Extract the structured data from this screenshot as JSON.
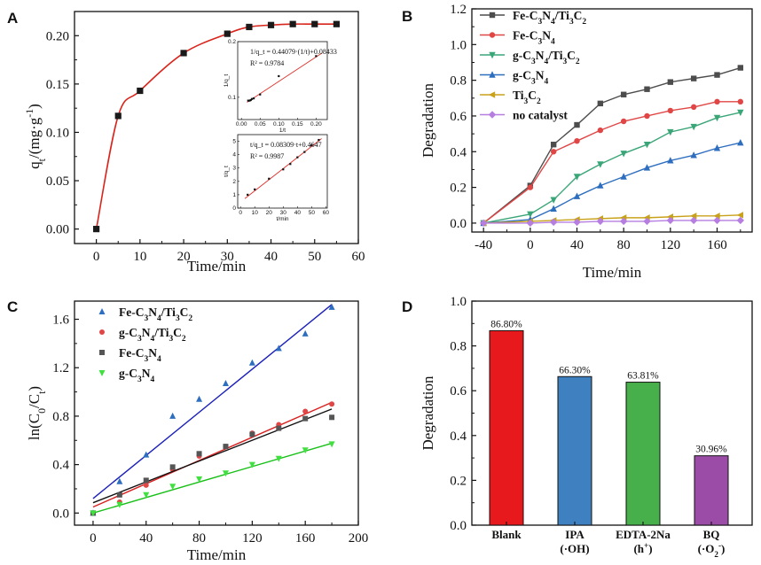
{
  "chart_data": [
    {
      "panel": "A",
      "type": "line",
      "xlabel": "Time/min",
      "ylabel": "q_t/(mg·g^-1)",
      "xlim": [
        -5,
        60
      ],
      "ylim": [
        -0.015,
        0.225
      ],
      "xticks": [
        "0",
        "10",
        "20",
        "30",
        "40",
        "50",
        "60"
      ],
      "yticks": [
        "0.00",
        "0.05",
        "0.10",
        "0.15",
        "0.20"
      ],
      "series": [
        {
          "name": "q_t",
          "color": "#d9241b",
          "marker": "square",
          "x": [
            0,
            5,
            10,
            20,
            30,
            35,
            40,
            45,
            50,
            55
          ],
          "y": [
            0.0,
            0.117,
            0.143,
            0.182,
            0.202,
            0.209,
            0.211,
            0.212,
            0.212,
            0.212
          ]
        }
      ],
      "insets": [
        {
          "equation": "1/q_t = 0.44079·(1/t)+0.08433",
          "r2": "R² = 0.9784",
          "xlabel": "1/t",
          "ylabel": "1/q_t",
          "xticks": [
            "0.00",
            "0.05",
            "0.10",
            "0.15",
            "0.20"
          ],
          "yticks": [
            "0.1",
            "0.2"
          ],
          "xlim": [
            -0.01,
            0.23
          ],
          "ylim": [
            0.06,
            0.2
          ],
          "fit": {
            "slope": 0.44079,
            "intercept": 0.08433
          },
          "x": [
            0.018,
            0.022,
            0.025,
            0.028,
            0.033,
            0.05,
            0.1,
            0.2
          ],
          "y": [
            0.094,
            0.094,
            0.095,
            0.097,
            0.098,
            0.105,
            0.138,
            0.174
          ]
        },
        {
          "equation": "t/q_t = 0.08309·t+0.4647",
          "r2": "R² = 0.9987",
          "xlabel": "t/min",
          "ylabel": "t/q_t",
          "xticks": [
            "0",
            "10",
            "20",
            "30",
            "40",
            "50",
            "60"
          ],
          "yticks": [
            "0",
            "1",
            "2",
            "3",
            "4",
            "5"
          ],
          "xlim": [
            -2,
            61
          ],
          "ylim": [
            0,
            5.5
          ],
          "fit": {
            "slope": 0.08309,
            "intercept": 0.4647
          },
          "x": [
            5,
            10,
            20,
            30,
            35,
            40,
            45,
            50,
            55
          ],
          "y": [
            1.0,
            1.4,
            2.2,
            2.9,
            3.3,
            3.8,
            4.2,
            4.7,
            5.1
          ]
        }
      ]
    },
    {
      "panel": "B",
      "type": "line",
      "xlabel": "Time/min",
      "ylabel": "Degradation",
      "xlim": [
        -50,
        190
      ],
      "ylim": [
        -0.05,
        1.2
      ],
      "xticks": [
        "-40",
        "0",
        "40",
        "80",
        "120",
        "160"
      ],
      "yticks": [
        "0.0",
        "0.2",
        "0.4",
        "0.6",
        "0.8",
        "1.0",
        "1.2"
      ],
      "x": [
        -40,
        0,
        20,
        40,
        60,
        80,
        100,
        120,
        140,
        160,
        180
      ],
      "series": [
        {
          "name": "Fe-C3N4/Ti3C2",
          "color": "#4d4d4d",
          "marker": "square",
          "values": [
            0,
            0.21,
            0.44,
            0.55,
            0.67,
            0.72,
            0.75,
            0.79,
            0.81,
            0.83,
            0.87
          ]
        },
        {
          "name": "Fe-C3N4",
          "color": "#e04646",
          "marker": "circle",
          "values": [
            0,
            0.2,
            0.4,
            0.46,
            0.52,
            0.57,
            0.6,
            0.63,
            0.65,
            0.68,
            0.68
          ]
        },
        {
          "name": "g-C3N4/Ti3C2",
          "color": "#3aa678",
          "marker": "triangle-down",
          "values": [
            0,
            0.05,
            0.13,
            0.26,
            0.33,
            0.39,
            0.44,
            0.51,
            0.54,
            0.59,
            0.62
          ]
        },
        {
          "name": "g-C3N4",
          "color": "#2e6ebf",
          "marker": "triangle-up",
          "values": [
            0,
            0.02,
            0.08,
            0.15,
            0.21,
            0.26,
            0.31,
            0.35,
            0.38,
            0.42,
            0.45
          ]
        },
        {
          "name": "Ti3C2",
          "color": "#c9a21c",
          "marker": "triangle-left",
          "values": [
            0,
            0.01,
            0.015,
            0.02,
            0.025,
            0.03,
            0.03,
            0.035,
            0.04,
            0.04,
            0.045
          ]
        },
        {
          "name": "no catalyst",
          "color": "#b57ee0",
          "marker": "diamond",
          "values": [
            0,
            0.0,
            0.005,
            0.005,
            0.01,
            0.01,
            0.01,
            0.015,
            0.015,
            0.015,
            0.015
          ]
        }
      ]
    },
    {
      "panel": "C",
      "type": "scatter",
      "xlabel": "Time/min",
      "ylabel": "ln(C0/Ct)",
      "xlim": [
        -14,
        200
      ],
      "ylim": [
        -0.1,
        1.75
      ],
      "xticks": [
        "0",
        "40",
        "80",
        "120",
        "160",
        "200"
      ],
      "yticks": [
        "0.0",
        "0.4",
        "0.8",
        "1.2",
        "1.6"
      ],
      "x": [
        0,
        20,
        40,
        60,
        80,
        100,
        120,
        140,
        160,
        180
      ],
      "series": [
        {
          "name": "Fe-C3N4/Ti3C2",
          "color": "#2e6ebf",
          "fitcolor": "#1a1fb8",
          "marker": "triangle-up",
          "values": [
            0,
            0.26,
            0.48,
            0.8,
            0.94,
            1.07,
            1.24,
            1.36,
            1.48,
            1.7
          ],
          "fit": [
            0.12,
            0.0089
          ]
        },
        {
          "name": "g-C3N4/Ti3C2",
          "color": "#e04646",
          "fitcolor": "#d92020",
          "marker": "circle",
          "values": [
            0,
            0.09,
            0.23,
            0.36,
            0.47,
            0.55,
            0.66,
            0.73,
            0.84,
            0.9
          ],
          "fit": [
            0.05,
            0.0048
          ]
        },
        {
          "name": "Fe-C3N4",
          "color": "#555555",
          "fitcolor": "#111111",
          "marker": "square",
          "values": [
            0,
            0.15,
            0.27,
            0.38,
            0.49,
            0.55,
            0.65,
            0.7,
            0.78,
            0.79
          ],
          "fit": [
            0.085,
            0.0043
          ]
        },
        {
          "name": "g-C3N4",
          "color": "#3fe03f",
          "fitcolor": "#18c018",
          "marker": "triangle-down",
          "values": [
            0,
            0.07,
            0.15,
            0.22,
            0.28,
            0.33,
            0.4,
            0.45,
            0.52,
            0.57
          ],
          "fit": [
            0.0,
            0.0032
          ]
        }
      ]
    },
    {
      "panel": "D",
      "type": "bar",
      "ylabel": "Degradation",
      "ylim": [
        0,
        1.0
      ],
      "yticks": [
        "0.0",
        "0.2",
        "0.4",
        "0.6",
        "0.8",
        "1.0"
      ],
      "categories": [
        "Blank",
        "IPA",
        "EDTA-2Na",
        "BQ"
      ],
      "subcategories": [
        "",
        "(·OH)",
        "(h+)",
        "(·O2-)"
      ],
      "values": [
        0.868,
        0.663,
        0.6381,
        0.3096
      ],
      "labels": [
        "86.80%",
        "66.30%",
        "63.81%",
        "30.96%"
      ],
      "colors": [
        "#e8191d",
        "#3f80c0",
        "#47b04b",
        "#9a4ca6"
      ]
    }
  ]
}
